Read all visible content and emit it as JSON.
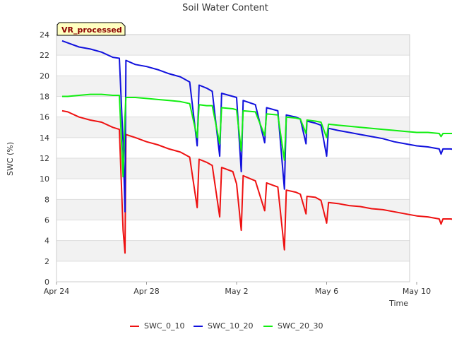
{
  "chart_data": {
    "type": "line",
    "title": "Soil Water Content",
    "xlabel": "Time",
    "ylabel": "SWC (%)",
    "badge": "VR_processed",
    "ylim": [
      0,
      24
    ],
    "yticks": [
      0,
      2,
      4,
      6,
      8,
      10,
      12,
      14,
      16,
      18,
      20,
      22,
      24
    ],
    "xlim": [
      "2024-04-24",
      "2024-05-12"
    ],
    "xticks": [
      {
        "date": "2024-04-24",
        "label": "Apr 24"
      },
      {
        "date": "2024-04-28",
        "label": "Apr 28"
      },
      {
        "date": "2024-05-02",
        "label": "May 2"
      },
      {
        "date": "2024-05-06",
        "label": "May 6"
      },
      {
        "date": "2024-05-10",
        "label": "May 10"
      }
    ],
    "grid": true,
    "legend_position": "bottom",
    "series": [
      {
        "name": "SWC_0_10",
        "color": "#ee1111",
        "points": [
          [
            "2024-04-24T06:00",
            16.6
          ],
          [
            "2024-04-24T12:00",
            16.5
          ],
          [
            "2024-04-25T00:00",
            16.0
          ],
          [
            "2024-04-25T12:00",
            15.7
          ],
          [
            "2024-04-26T00:00",
            15.5
          ],
          [
            "2024-04-26T12:00",
            15.0
          ],
          [
            "2024-04-26T19:00",
            14.8
          ],
          [
            "2024-04-26T23:00",
            5.0
          ],
          [
            "2024-04-27T01:00",
            2.8
          ],
          [
            "2024-04-27T02:00",
            14.3
          ],
          [
            "2024-04-27T12:00",
            14.0
          ],
          [
            "2024-04-28T00:00",
            13.6
          ],
          [
            "2024-04-28T12:00",
            13.3
          ],
          [
            "2024-04-29T00:00",
            12.9
          ],
          [
            "2024-04-29T12:00",
            12.6
          ],
          [
            "2024-04-29T22:00",
            12.1
          ],
          [
            "2024-04-30T06:00",
            7.2
          ],
          [
            "2024-04-30T08:00",
            11.9
          ],
          [
            "2024-04-30T16:00",
            11.6
          ],
          [
            "2024-04-30T22:00",
            11.3
          ],
          [
            "2024-05-01T06:00",
            6.3
          ],
          [
            "2024-05-01T08:00",
            11.1
          ],
          [
            "2024-05-01T20:00",
            10.7
          ],
          [
            "2024-05-02T00:00",
            9.5
          ],
          [
            "2024-05-02T05:00",
            5.0
          ],
          [
            "2024-05-02T07:00",
            10.3
          ],
          [
            "2024-05-02T20:00",
            9.8
          ],
          [
            "2024-05-03T06:00",
            6.9
          ],
          [
            "2024-05-03T08:00",
            9.6
          ],
          [
            "2024-05-03T20:00",
            9.2
          ],
          [
            "2024-05-04T03:00",
            3.1
          ],
          [
            "2024-05-04T05:00",
            8.9
          ],
          [
            "2024-05-04T15:00",
            8.7
          ],
          [
            "2024-05-04T20:00",
            8.5
          ],
          [
            "2024-05-05T02:00",
            6.6
          ],
          [
            "2024-05-05T03:00",
            8.3
          ],
          [
            "2024-05-05T12:00",
            8.2
          ],
          [
            "2024-05-05T18:00",
            7.9
          ],
          [
            "2024-05-06T00:00",
            5.7
          ],
          [
            "2024-05-06T02:00",
            7.7
          ],
          [
            "2024-05-06T12:00",
            7.6
          ],
          [
            "2024-05-07T00:00",
            7.4
          ],
          [
            "2024-05-07T12:00",
            7.3
          ],
          [
            "2024-05-08T00:00",
            7.1
          ],
          [
            "2024-05-08T12:00",
            7.0
          ],
          [
            "2024-05-09T00:00",
            6.8
          ],
          [
            "2024-05-09T12:00",
            6.6
          ],
          [
            "2024-05-10T00:00",
            6.4
          ],
          [
            "2024-05-10T12:00",
            6.3
          ],
          [
            "2024-05-11T00:00",
            6.1
          ],
          [
            "2024-05-11T02:00",
            5.6
          ],
          [
            "2024-05-11T04:00",
            6.1
          ],
          [
            "2024-05-11T12:00",
            6.1
          ],
          [
            "2024-05-11T20:00",
            6.0
          ]
        ]
      },
      {
        "name": "SWC_10_20",
        "color": "#1111dd",
        "points": [
          [
            "2024-04-24T06:00",
            23.4
          ],
          [
            "2024-04-24T12:00",
            23.2
          ],
          [
            "2024-04-25T00:00",
            22.8
          ],
          [
            "2024-04-25T12:00",
            22.6
          ],
          [
            "2024-04-26T00:00",
            22.3
          ],
          [
            "2024-04-26T12:00",
            21.8
          ],
          [
            "2024-04-26T19:00",
            21.7
          ],
          [
            "2024-04-26T23:00",
            13.5
          ],
          [
            "2024-04-27T01:00",
            6.8
          ],
          [
            "2024-04-27T02:00",
            21.5
          ],
          [
            "2024-04-27T12:00",
            21.1
          ],
          [
            "2024-04-28T00:00",
            20.9
          ],
          [
            "2024-04-28T12:00",
            20.6
          ],
          [
            "2024-04-29T00:00",
            20.2
          ],
          [
            "2024-04-29T12:00",
            19.9
          ],
          [
            "2024-04-29T22:00",
            19.4
          ],
          [
            "2024-04-30T06:00",
            13.2
          ],
          [
            "2024-04-30T08:00",
            19.1
          ],
          [
            "2024-04-30T16:00",
            18.8
          ],
          [
            "2024-04-30T22:00",
            18.5
          ],
          [
            "2024-05-01T06:00",
            12.2
          ],
          [
            "2024-05-01T08:00",
            18.3
          ],
          [
            "2024-05-01T20:00",
            18.0
          ],
          [
            "2024-05-02T00:00",
            17.9
          ],
          [
            "2024-05-02T05:00",
            10.7
          ],
          [
            "2024-05-02T07:00",
            17.6
          ],
          [
            "2024-05-02T20:00",
            17.2
          ],
          [
            "2024-05-03T06:00",
            13.5
          ],
          [
            "2024-05-03T08:00",
            16.9
          ],
          [
            "2024-05-03T20:00",
            16.6
          ],
          [
            "2024-05-04T03:00",
            9.0
          ],
          [
            "2024-05-04T05:00",
            16.2
          ],
          [
            "2024-05-04T15:00",
            16.0
          ],
          [
            "2024-05-04T20:00",
            15.8
          ],
          [
            "2024-05-05T02:00",
            13.4
          ],
          [
            "2024-05-05T03:00",
            15.6
          ],
          [
            "2024-05-05T12:00",
            15.4
          ],
          [
            "2024-05-05T18:00",
            15.2
          ],
          [
            "2024-05-06T00:00",
            12.2
          ],
          [
            "2024-05-06T02:00",
            14.9
          ],
          [
            "2024-05-06T12:00",
            14.7
          ],
          [
            "2024-05-07T00:00",
            14.5
          ],
          [
            "2024-05-07T12:00",
            14.3
          ],
          [
            "2024-05-08T00:00",
            14.1
          ],
          [
            "2024-05-08T12:00",
            13.9
          ],
          [
            "2024-05-09T00:00",
            13.6
          ],
          [
            "2024-05-09T12:00",
            13.4
          ],
          [
            "2024-05-10T00:00",
            13.2
          ],
          [
            "2024-05-10T12:00",
            13.1
          ],
          [
            "2024-05-11T00:00",
            12.9
          ],
          [
            "2024-05-11T02:00",
            12.4
          ],
          [
            "2024-05-11T04:00",
            12.9
          ],
          [
            "2024-05-11T12:00",
            12.9
          ],
          [
            "2024-05-11T20:00",
            12.8
          ]
        ]
      },
      {
        "name": "SWC_20_30",
        "color": "#11ee11",
        "points": [
          [
            "2024-04-24T06:00",
            18.0
          ],
          [
            "2024-04-24T12:00",
            18.0
          ],
          [
            "2024-04-25T00:00",
            18.1
          ],
          [
            "2024-04-25T12:00",
            18.2
          ],
          [
            "2024-04-26T00:00",
            18.2
          ],
          [
            "2024-04-26T12:00",
            18.1
          ],
          [
            "2024-04-26T19:00",
            18.1
          ],
          [
            "2024-04-26T23:00",
            10.2
          ],
          [
            "2024-04-27T01:00",
            16.0
          ],
          [
            "2024-04-27T02:00",
            17.9
          ],
          [
            "2024-04-27T12:00",
            17.9
          ],
          [
            "2024-04-28T00:00",
            17.8
          ],
          [
            "2024-04-28T12:00",
            17.7
          ],
          [
            "2024-04-29T00:00",
            17.6
          ],
          [
            "2024-04-29T12:00",
            17.5
          ],
          [
            "2024-04-29T22:00",
            17.3
          ],
          [
            "2024-04-30T06:00",
            14.0
          ],
          [
            "2024-04-30T08:00",
            17.2
          ],
          [
            "2024-04-30T16:00",
            17.1
          ],
          [
            "2024-04-30T22:00",
            17.1
          ],
          [
            "2024-05-01T06:00",
            13.4
          ],
          [
            "2024-05-01T08:00",
            16.9
          ],
          [
            "2024-05-01T20:00",
            16.8
          ],
          [
            "2024-05-02T00:00",
            16.7
          ],
          [
            "2024-05-02T05:00",
            12.7
          ],
          [
            "2024-05-02T07:00",
            16.6
          ],
          [
            "2024-05-02T20:00",
            16.5
          ],
          [
            "2024-05-03T06:00",
            14.2
          ],
          [
            "2024-05-03T08:00",
            16.3
          ],
          [
            "2024-05-03T20:00",
            16.2
          ],
          [
            "2024-05-04T03:00",
            11.8
          ],
          [
            "2024-05-04T05:00",
            16.0
          ],
          [
            "2024-05-04T15:00",
            15.9
          ],
          [
            "2024-05-04T20:00",
            15.8
          ],
          [
            "2024-05-05T02:00",
            14.4
          ],
          [
            "2024-05-05T03:00",
            15.7
          ],
          [
            "2024-05-05T12:00",
            15.6
          ],
          [
            "2024-05-05T18:00",
            15.5
          ],
          [
            "2024-05-06T00:00",
            14.0
          ],
          [
            "2024-05-06T02:00",
            15.3
          ],
          [
            "2024-05-06T12:00",
            15.2
          ],
          [
            "2024-05-07T00:00",
            15.1
          ],
          [
            "2024-05-07T12:00",
            15.0
          ],
          [
            "2024-05-08T00:00",
            14.9
          ],
          [
            "2024-05-08T12:00",
            14.8
          ],
          [
            "2024-05-09T00:00",
            14.7
          ],
          [
            "2024-05-09T12:00",
            14.6
          ],
          [
            "2024-05-10T00:00",
            14.5
          ],
          [
            "2024-05-10T12:00",
            14.5
          ],
          [
            "2024-05-11T00:00",
            14.4
          ],
          [
            "2024-05-11T02:00",
            14.1
          ],
          [
            "2024-05-11T04:00",
            14.4
          ],
          [
            "2024-05-11T12:00",
            14.4
          ],
          [
            "2024-05-11T20:00",
            14.4
          ]
        ]
      }
    ]
  }
}
